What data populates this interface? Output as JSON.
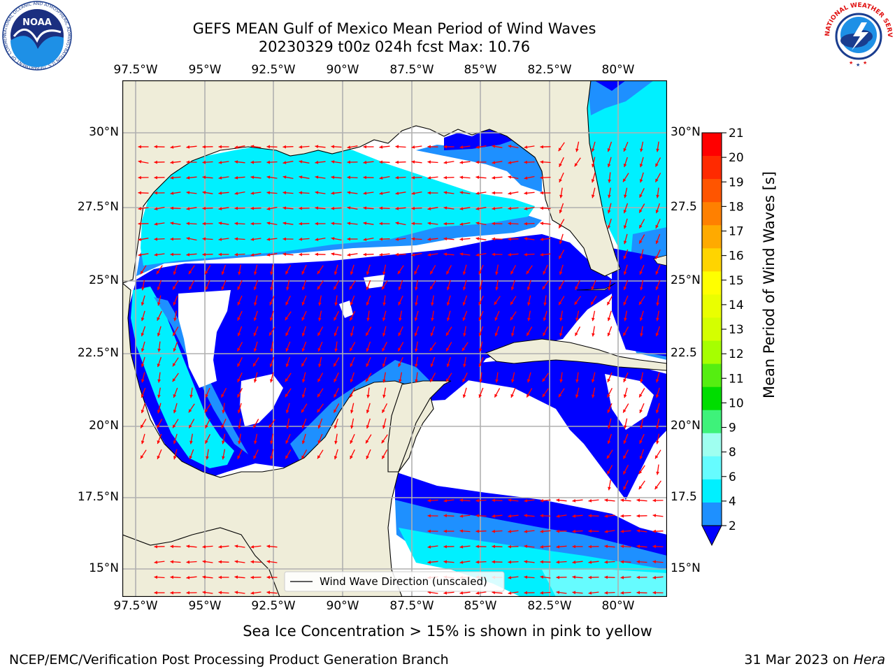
{
  "header": {
    "title_line1": "GEFS MEAN Gulf of Mexico Mean Period of Wind Waves",
    "title_line2": "20230329 t00z 024h fcst   Max: 10.76"
  },
  "logos": {
    "left": {
      "name": "noaa-logo",
      "text": "NOAA",
      "ring_text": "NATIONAL OCEANIC AND ATMOSPHERIC ADMINISTRATION  U.S. DEPARTMENT OF COMMERCE"
    },
    "right": {
      "name": "nws-logo",
      "ring_text": "NATIONAL WEATHER SERVICE"
    }
  },
  "map": {
    "lon_labels": [
      "97.5°W",
      "95°W",
      "92.5°W",
      "90°W",
      "87.5°W",
      "85°W",
      "82.5°W",
      "80°W"
    ],
    "lat_labels_left": [
      "30°N",
      "27.5°N",
      "25°N",
      "22.5°N",
      "20°N",
      "17.5°N",
      "15°N"
    ],
    "lat_labels_right": [
      "30°N",
      "27.5",
      "25°N",
      "22.5",
      "20°N",
      "17.5",
      "15°N"
    ],
    "legend_label": "Wind Wave Direction (unscaled)",
    "colors": {
      "land": "#efedd9",
      "bin_2_4": "#0000ff",
      "bin_4_6": "#1e90ff",
      "bin_6_8": "#00f0ff",
      "bin_8_9": "#66fcff",
      "arrow": "#ff0000"
    }
  },
  "colorbar": {
    "label": "Mean Period of Wind Waves [s]",
    "ticks": [
      "21",
      "20",
      "19",
      "18",
      "17",
      "16",
      "15",
      "14",
      "13",
      "12",
      "11",
      "10",
      "9",
      "8",
      "6",
      "4",
      "2"
    ],
    "colors_top_to_bottom": [
      "#ff0000",
      "#ff2a00",
      "#ff5500",
      "#ff8000",
      "#ffaa00",
      "#ffd400",
      "#ffff00",
      "#eaff00",
      "#d4ff00",
      "#a6ff00",
      "#55ee11",
      "#00dd00",
      "#3ef27a",
      "#9ffff0",
      "#66fcff",
      "#00f0ff",
      "#1e90ff"
    ],
    "extend_color": "#0000ff"
  },
  "notes": {
    "sea_ice": "Sea Ice Concentration > 15% is shown in pink to yellow"
  },
  "footer": {
    "left": "NCEP/EMC/Verification Post Processing Product Generation Branch",
    "date": "31 Mar 2023 on ",
    "host": "Hera"
  }
}
